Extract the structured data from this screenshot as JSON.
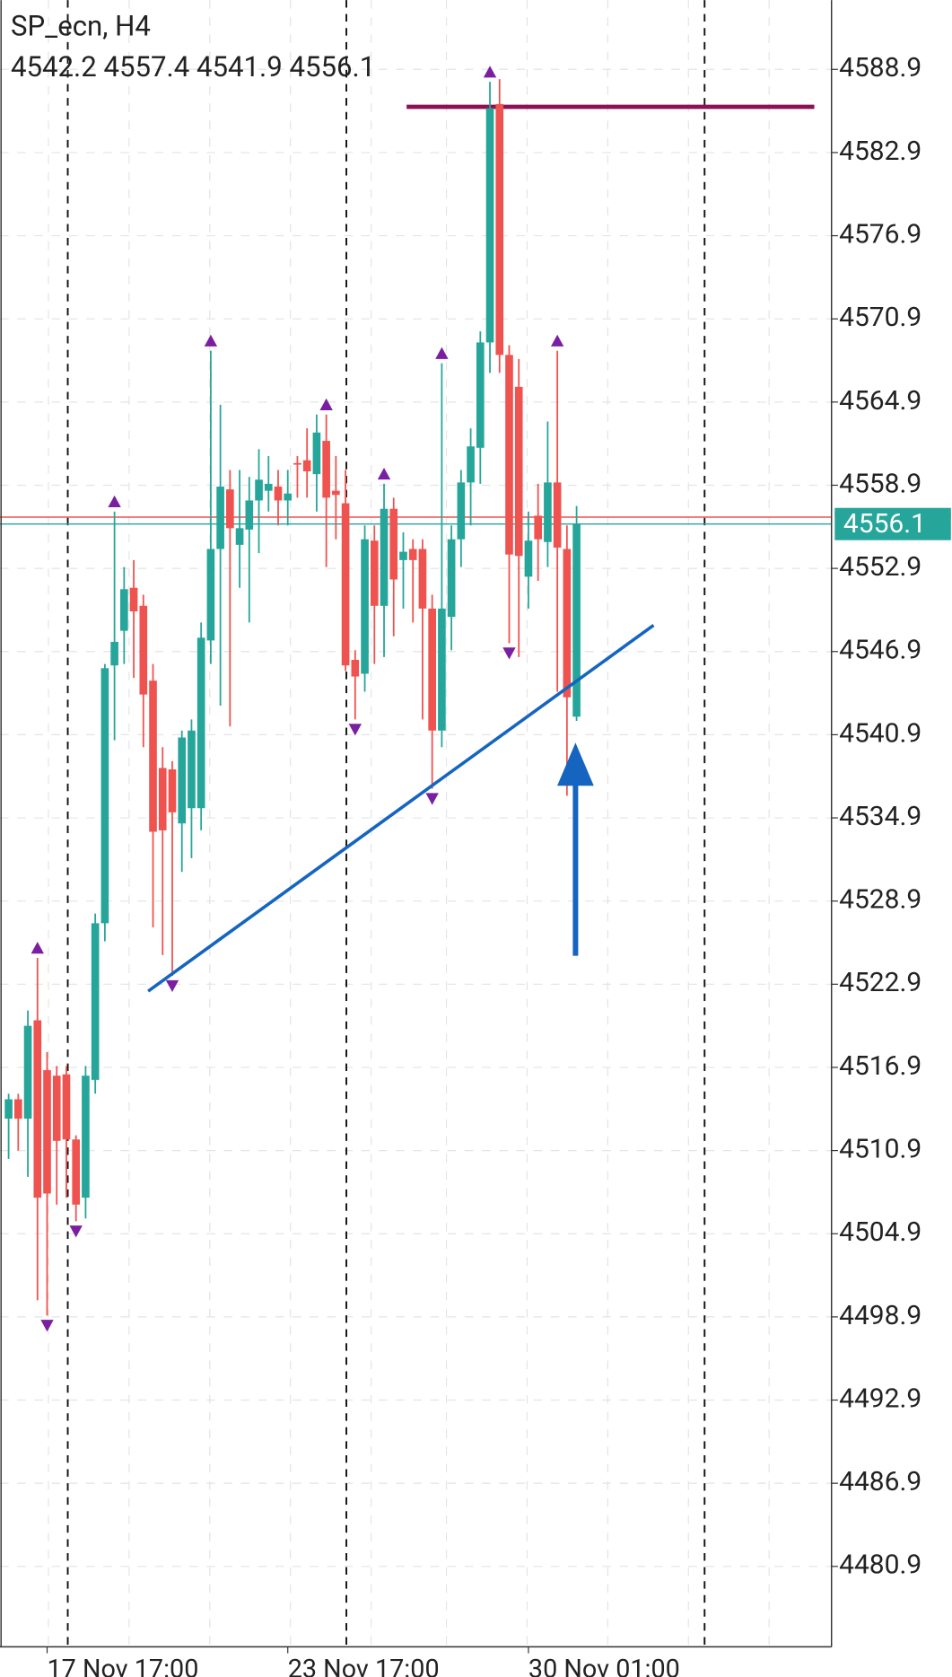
{
  "chart_data": {
    "type": "candlestick",
    "title": "SP_ecn, H4",
    "ohlc_text": "4542.2 4557.4 4541.9 4556.1",
    "up_color": "#26a69a",
    "down_color": "#ef5350",
    "open": [
      4513.2,
      4514.6,
      4513.2,
      4520.3,
      4516.7,
      4516.3,
      4516.4,
      4511.7,
      4507.5,
      4516.0,
      4527.3,
      4545.9,
      4548.4,
      4551.5,
      4550.2,
      4544.8,
      4538.5,
      4538.4,
      4534.5,
      4535.6,
      4535.6,
      4547.7,
      4554.3,
      4558.6,
      4554.6,
      4555.7,
      4557.8,
      4558.5,
      4558.8,
      4557.8,
      4560.5,
      4560.7,
      4559.7,
      4562.1,
      4558.5,
      4557.6,
      4546.3,
      4545.3,
      4554.9,
      4550.2,
      4557.2,
      4553.5,
      4554.3,
      4554.3,
      4550.0,
      4541.2,
      4549.4,
      4555.0,
      4559.1,
      4561.6,
      4569.2,
      4586.4,
      4568.3,
      4566.0,
      4552.3,
      4556.7,
      4554.8,
      4559.1,
      4554.3,
      4542.2
    ],
    "high": [
      4515.0,
      4515.0,
      4521.0,
      4524.8,
      4518.0,
      4517.0,
      4517.0,
      4512.0,
      4517.0,
      4528.0,
      4546.0,
      4557.0,
      4553.0,
      4553.5,
      4551.0,
      4546.0,
      4540.0,
      4539.0,
      4541.2,
      4542.0,
      4549.0,
      4568.6,
      4564.7,
      4560.0,
      4560.0,
      4559.5,
      4561.5,
      4561.0,
      4560.0,
      4560.0,
      4561.0,
      4563.0,
      4564.0,
      4564.0,
      4561.0,
      4560.0,
      4547.0,
      4556.0,
      4556.0,
      4559.0,
      4558.0,
      4555.5,
      4555.0,
      4555.0,
      4551.0,
      4567.7,
      4556.0,
      4560.0,
      4563.0,
      4570.0,
      4588.0,
      4588.2,
      4569.0,
      4568.0,
      4557.0,
      4559.0,
      4563.5,
      4568.6,
      4556.0,
      4557.4
    ],
    "low": [
      4510.3,
      4510.9,
      4509.0,
      4500.1,
      4499.0,
      4507.0,
      4507.5,
      4505.8,
      4506.0,
      4515.0,
      4526.0,
      4540.5,
      4546.0,
      4545.0,
      4540.0,
      4527.0,
      4525.0,
      4523.5,
      4531.0,
      4532.0,
      4534.0,
      4546.0,
      4543.0,
      4541.5,
      4551.5,
      4549.0,
      4554.0,
      4557.0,
      4556.0,
      4556.0,
      4558.0,
      4558.0,
      4557.0,
      4553.0,
      4555.0,
      4545.5,
      4542.0,
      4544.0,
      4546.0,
      4546.5,
      4548.0,
      4550.0,
      4549.0,
      4542.0,
      4537.0,
      4540.0,
      4547.0,
      4553.0,
      4556.0,
      4559.0,
      4567.0,
      4567.0,
      4547.5,
      4546.5,
      4550.0,
      4552.0,
      4553.0,
      4544.0,
      4536.5,
      4541.9
    ],
    "close": [
      4514.6,
      4513.2,
      4519.9,
      4507.5,
      4507.8,
      4511.6,
      4511.7,
      4507.0,
      4516.3,
      4527.3,
      4545.7,
      4547.6,
      4551.4,
      4549.8,
      4543.8,
      4533.9,
      4534.0,
      4535.3,
      4540.7,
      4541.2,
      4547.9,
      4554.3,
      4558.8,
      4555.8,
      4555.8,
      4557.8,
      4559.3,
      4559.0,
      4557.8,
      4558.3,
      4560.4,
      4559.9,
      4562.7,
      4558.0,
      4558.2,
      4545.9,
      4545.1,
      4555.0,
      4550.2,
      4557.2,
      4552.1,
      4554.1,
      4553.5,
      4550.0,
      4541.2,
      4550.0,
      4555.0,
      4559.1,
      4561.7,
      4569.2,
      4586.1,
      4568.3,
      4553.9,
      4553.8,
      4554.9,
      4555.0,
      4559.1,
      4554.4,
      4543.6,
      4556.1
    ],
    "fractals_up": [
      3,
      11,
      21,
      33,
      39,
      45,
      50,
      57
    ],
    "fractals_down": [
      4,
      7,
      17,
      36,
      44,
      52
    ],
    "resistance": 4586.2,
    "resistance_color": "#8e1253",
    "trendline": {
      "x": [
        14.5,
        67
      ],
      "y": [
        4522.4,
        4548.8
      ],
      "color": "#1565c0"
    },
    "bid": 4556.1,
    "ask": 4556.6,
    "ylim": [
      4475.1,
      4593.9
    ],
    "yticks": [
      4588.9,
      4582.9,
      4576.9,
      4570.9,
      4564.9,
      4558.9,
      4552.9,
      4546.9,
      4540.9,
      4534.9,
      4528.9,
      4522.9,
      4516.9,
      4510.9,
      4504.9,
      4498.9,
      4492.9,
      4486.9,
      4480.9
    ],
    "xticks": [
      {
        "value": 4,
        "label": "17 Nov 17:00"
      },
      {
        "value": 29,
        "label": "23 Nov 17:00"
      },
      {
        "value": 54,
        "label": "30 Nov 01:00"
      }
    ],
    "grid": true
  }
}
